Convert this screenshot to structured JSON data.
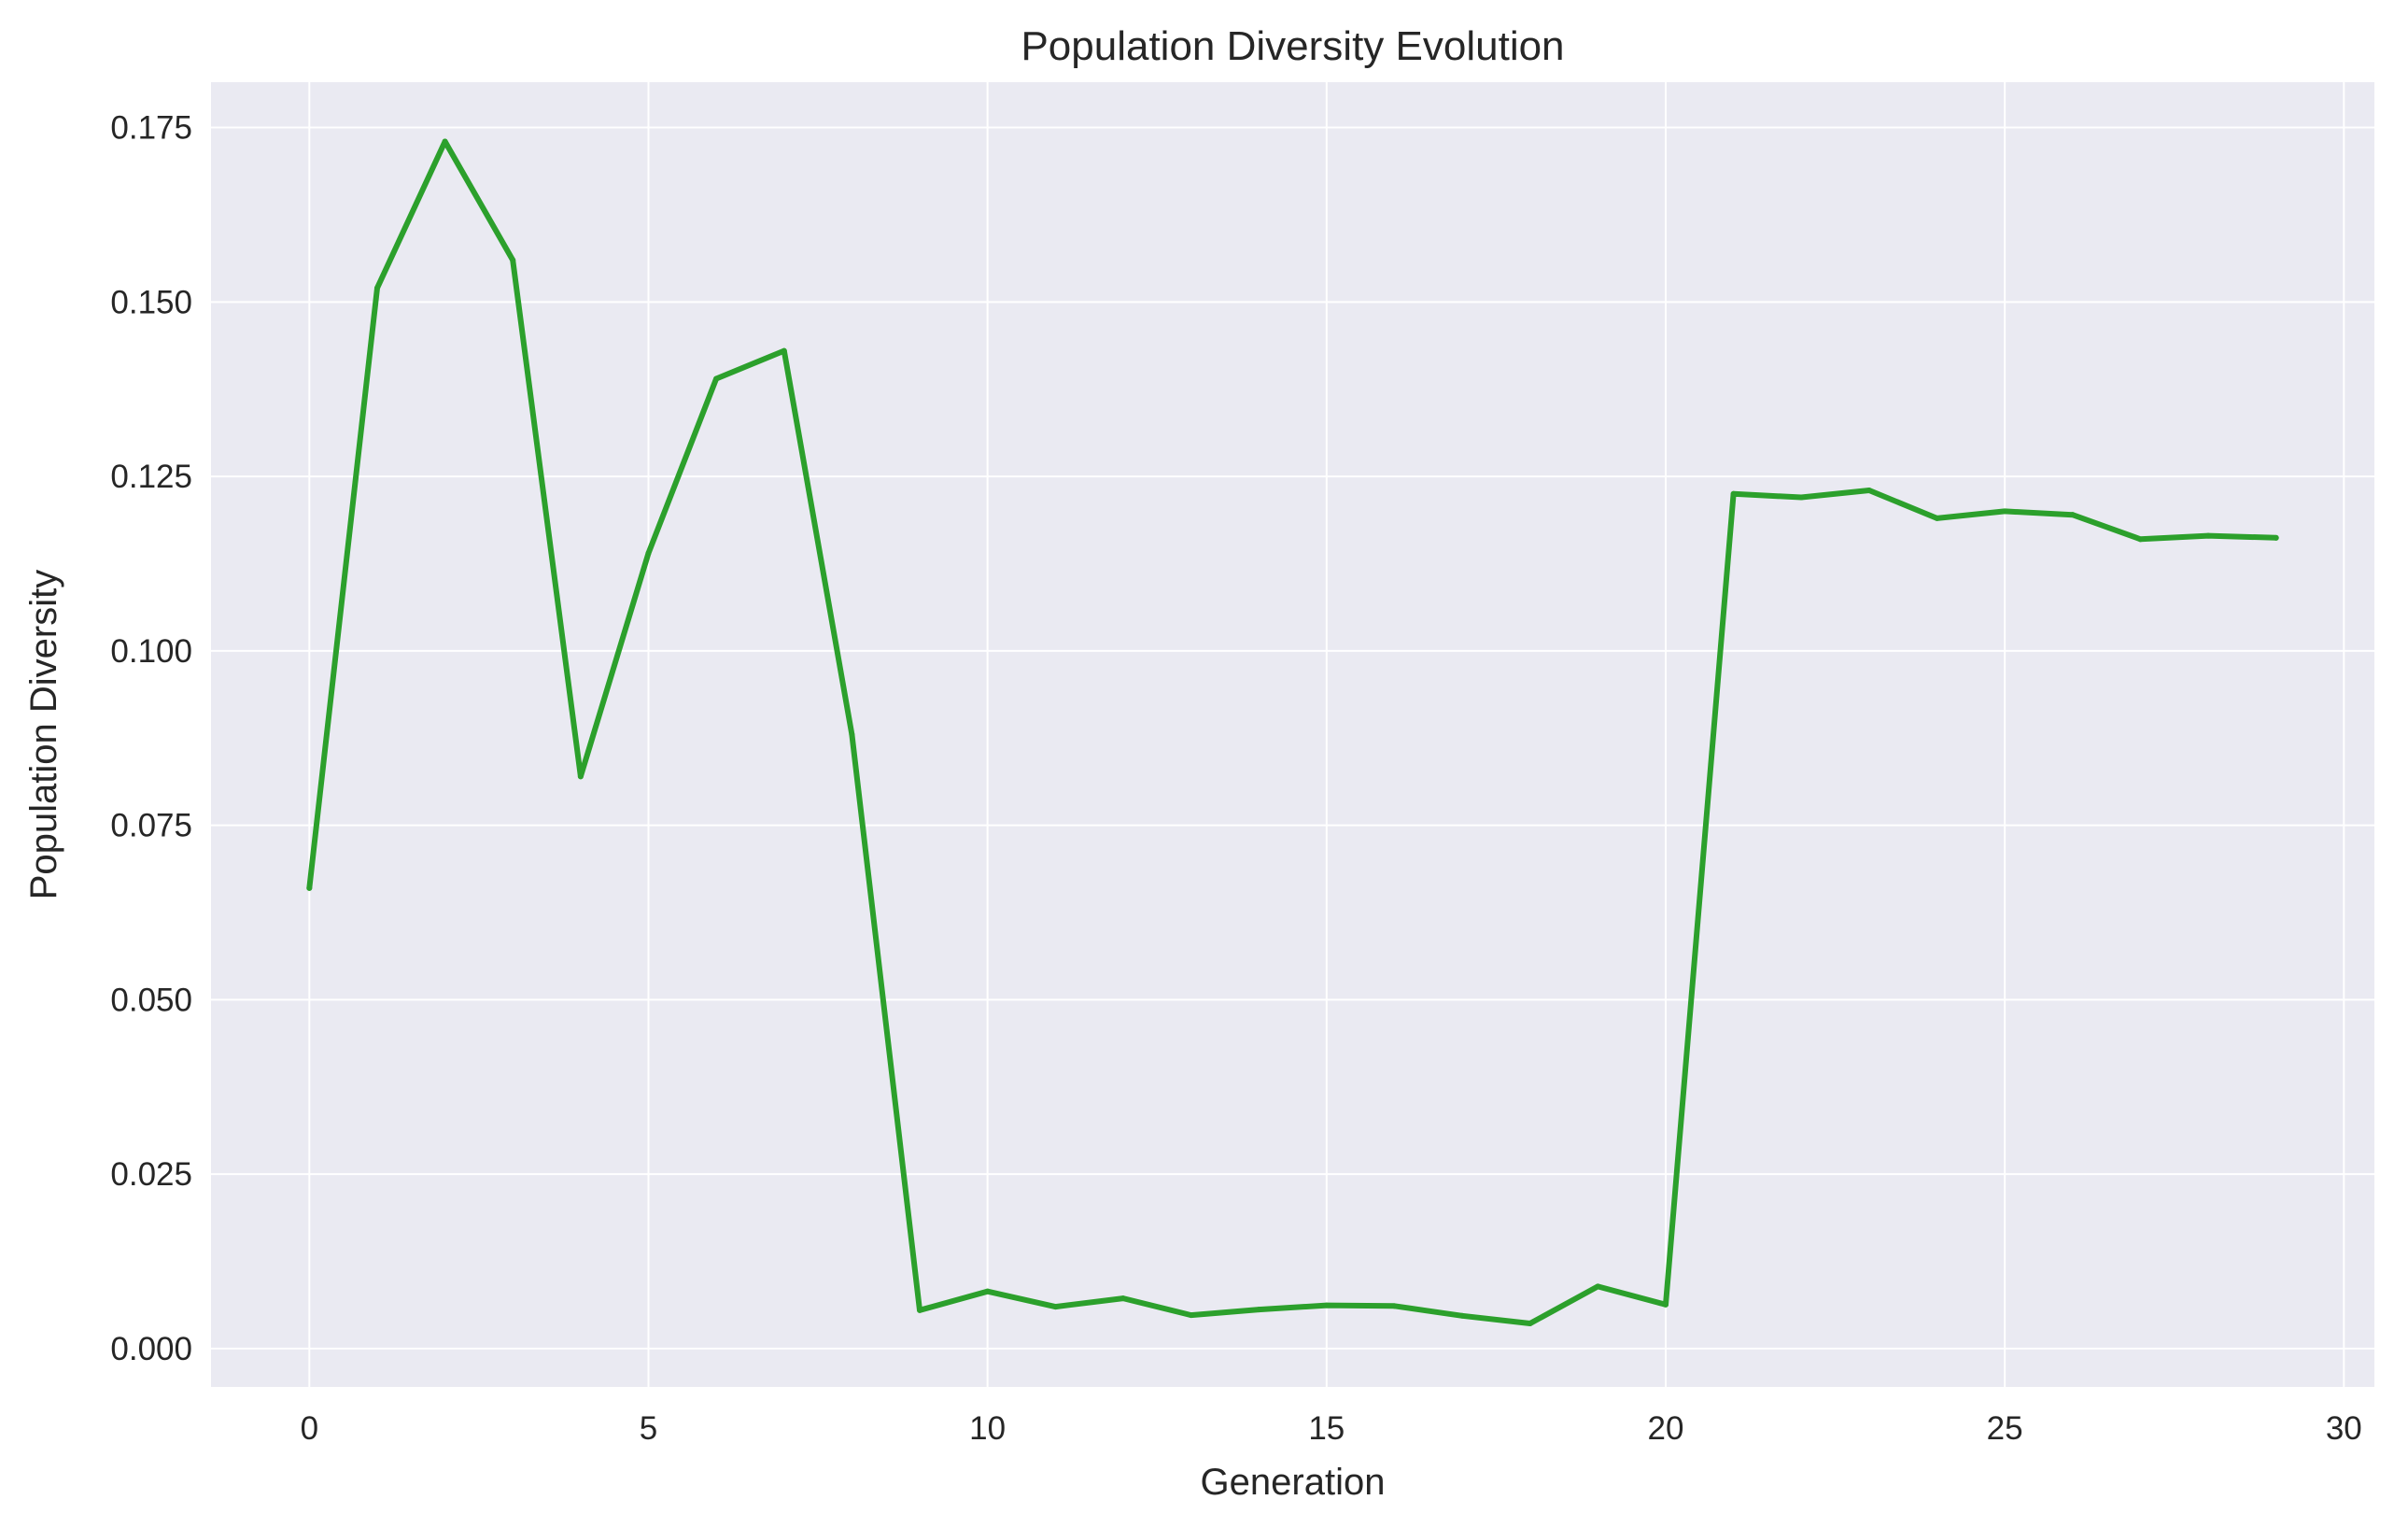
{
  "chart_data": {
    "type": "line",
    "title": "Population Diversity Evolution",
    "xlabel": "Generation",
    "ylabel": "Population Diversity",
    "xlim": [
      -1.45,
      30.45
    ],
    "ylim": [
      -0.0055,
      0.1815
    ],
    "xticks": [
      0,
      5,
      10,
      15,
      20,
      25,
      30
    ],
    "xtick_labels": [
      "0",
      "5",
      "10",
      "15",
      "20",
      "25",
      "30"
    ],
    "yticks": [
      0.0,
      0.025,
      0.05,
      0.075,
      0.1,
      0.125,
      0.15,
      0.175
    ],
    "ytick_labels": [
      "0.000",
      "0.025",
      "0.050",
      "0.075",
      "0.100",
      "0.125",
      "0.150",
      "0.175"
    ],
    "grid": true,
    "series": [
      {
        "color": "#2ca02c",
        "x": [
          0,
          1,
          2,
          3,
          4,
          5,
          6,
          7,
          8,
          9,
          10,
          11,
          12,
          13,
          14,
          15,
          16,
          17,
          18,
          19,
          20,
          21,
          22,
          23,
          24,
          25,
          26,
          27,
          28,
          29
        ],
        "values": [
          0.066,
          0.152,
          0.173,
          0.156,
          0.082,
          0.114,
          0.139,
          0.143,
          0.088,
          0.0055,
          0.0082,
          0.006,
          0.0072,
          0.0048,
          0.0056,
          0.0062,
          0.0061,
          0.0047,
          0.0036,
          0.0089,
          0.0063,
          0.1225,
          0.122,
          0.123,
          0.119,
          0.12,
          0.1195,
          0.116,
          0.1165,
          0.1162
        ]
      }
    ]
  },
  "colors": {
    "plot_background": "#eaeaf2",
    "grid": "#ffffff",
    "line": "#2ca02c",
    "text": "#262626"
  }
}
